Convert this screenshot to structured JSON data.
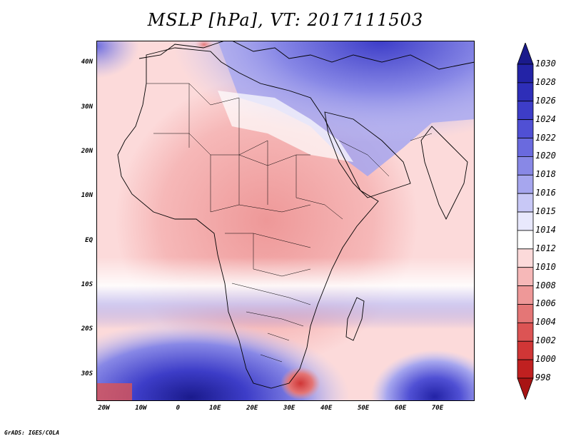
{
  "title": "MSLP [hPa], VT: 2017111503",
  "credit": "GrADS: IGES/COLA",
  "map": {
    "lat_labels": [
      "40N",
      "30N",
      "20N",
      "10N",
      "EQ",
      "10S",
      "20S",
      "30S"
    ],
    "lon_labels": [
      "20W",
      "10W",
      "0",
      "10E",
      "20E",
      "30E",
      "40E",
      "50E",
      "60E",
      "70E"
    ],
    "lat_range": [
      -36,
      45
    ],
    "lon_range": [
      -22,
      80
    ]
  },
  "colorbar": {
    "levels": [
      "1030",
      "1028",
      "1026",
      "1024",
      "1022",
      "1020",
      "1018",
      "1016",
      "1015",
      "1014",
      "1012",
      "1010",
      "1008",
      "1006",
      "1004",
      "1002",
      "1000",
      "998"
    ],
    "colors": [
      "#1a1a8c",
      "#2323a6",
      "#2e2eb8",
      "#3d3dc8",
      "#5050d4",
      "#6a6ade",
      "#8888e6",
      "#a6a6ee",
      "#c8c8f6",
      "#e8e8fc",
      "#ffffff",
      "#fcdada",
      "#f6b8b8",
      "#ee9898",
      "#e47676",
      "#dc5454",
      "#d03636",
      "#c02020",
      "#a81414"
    ]
  }
}
